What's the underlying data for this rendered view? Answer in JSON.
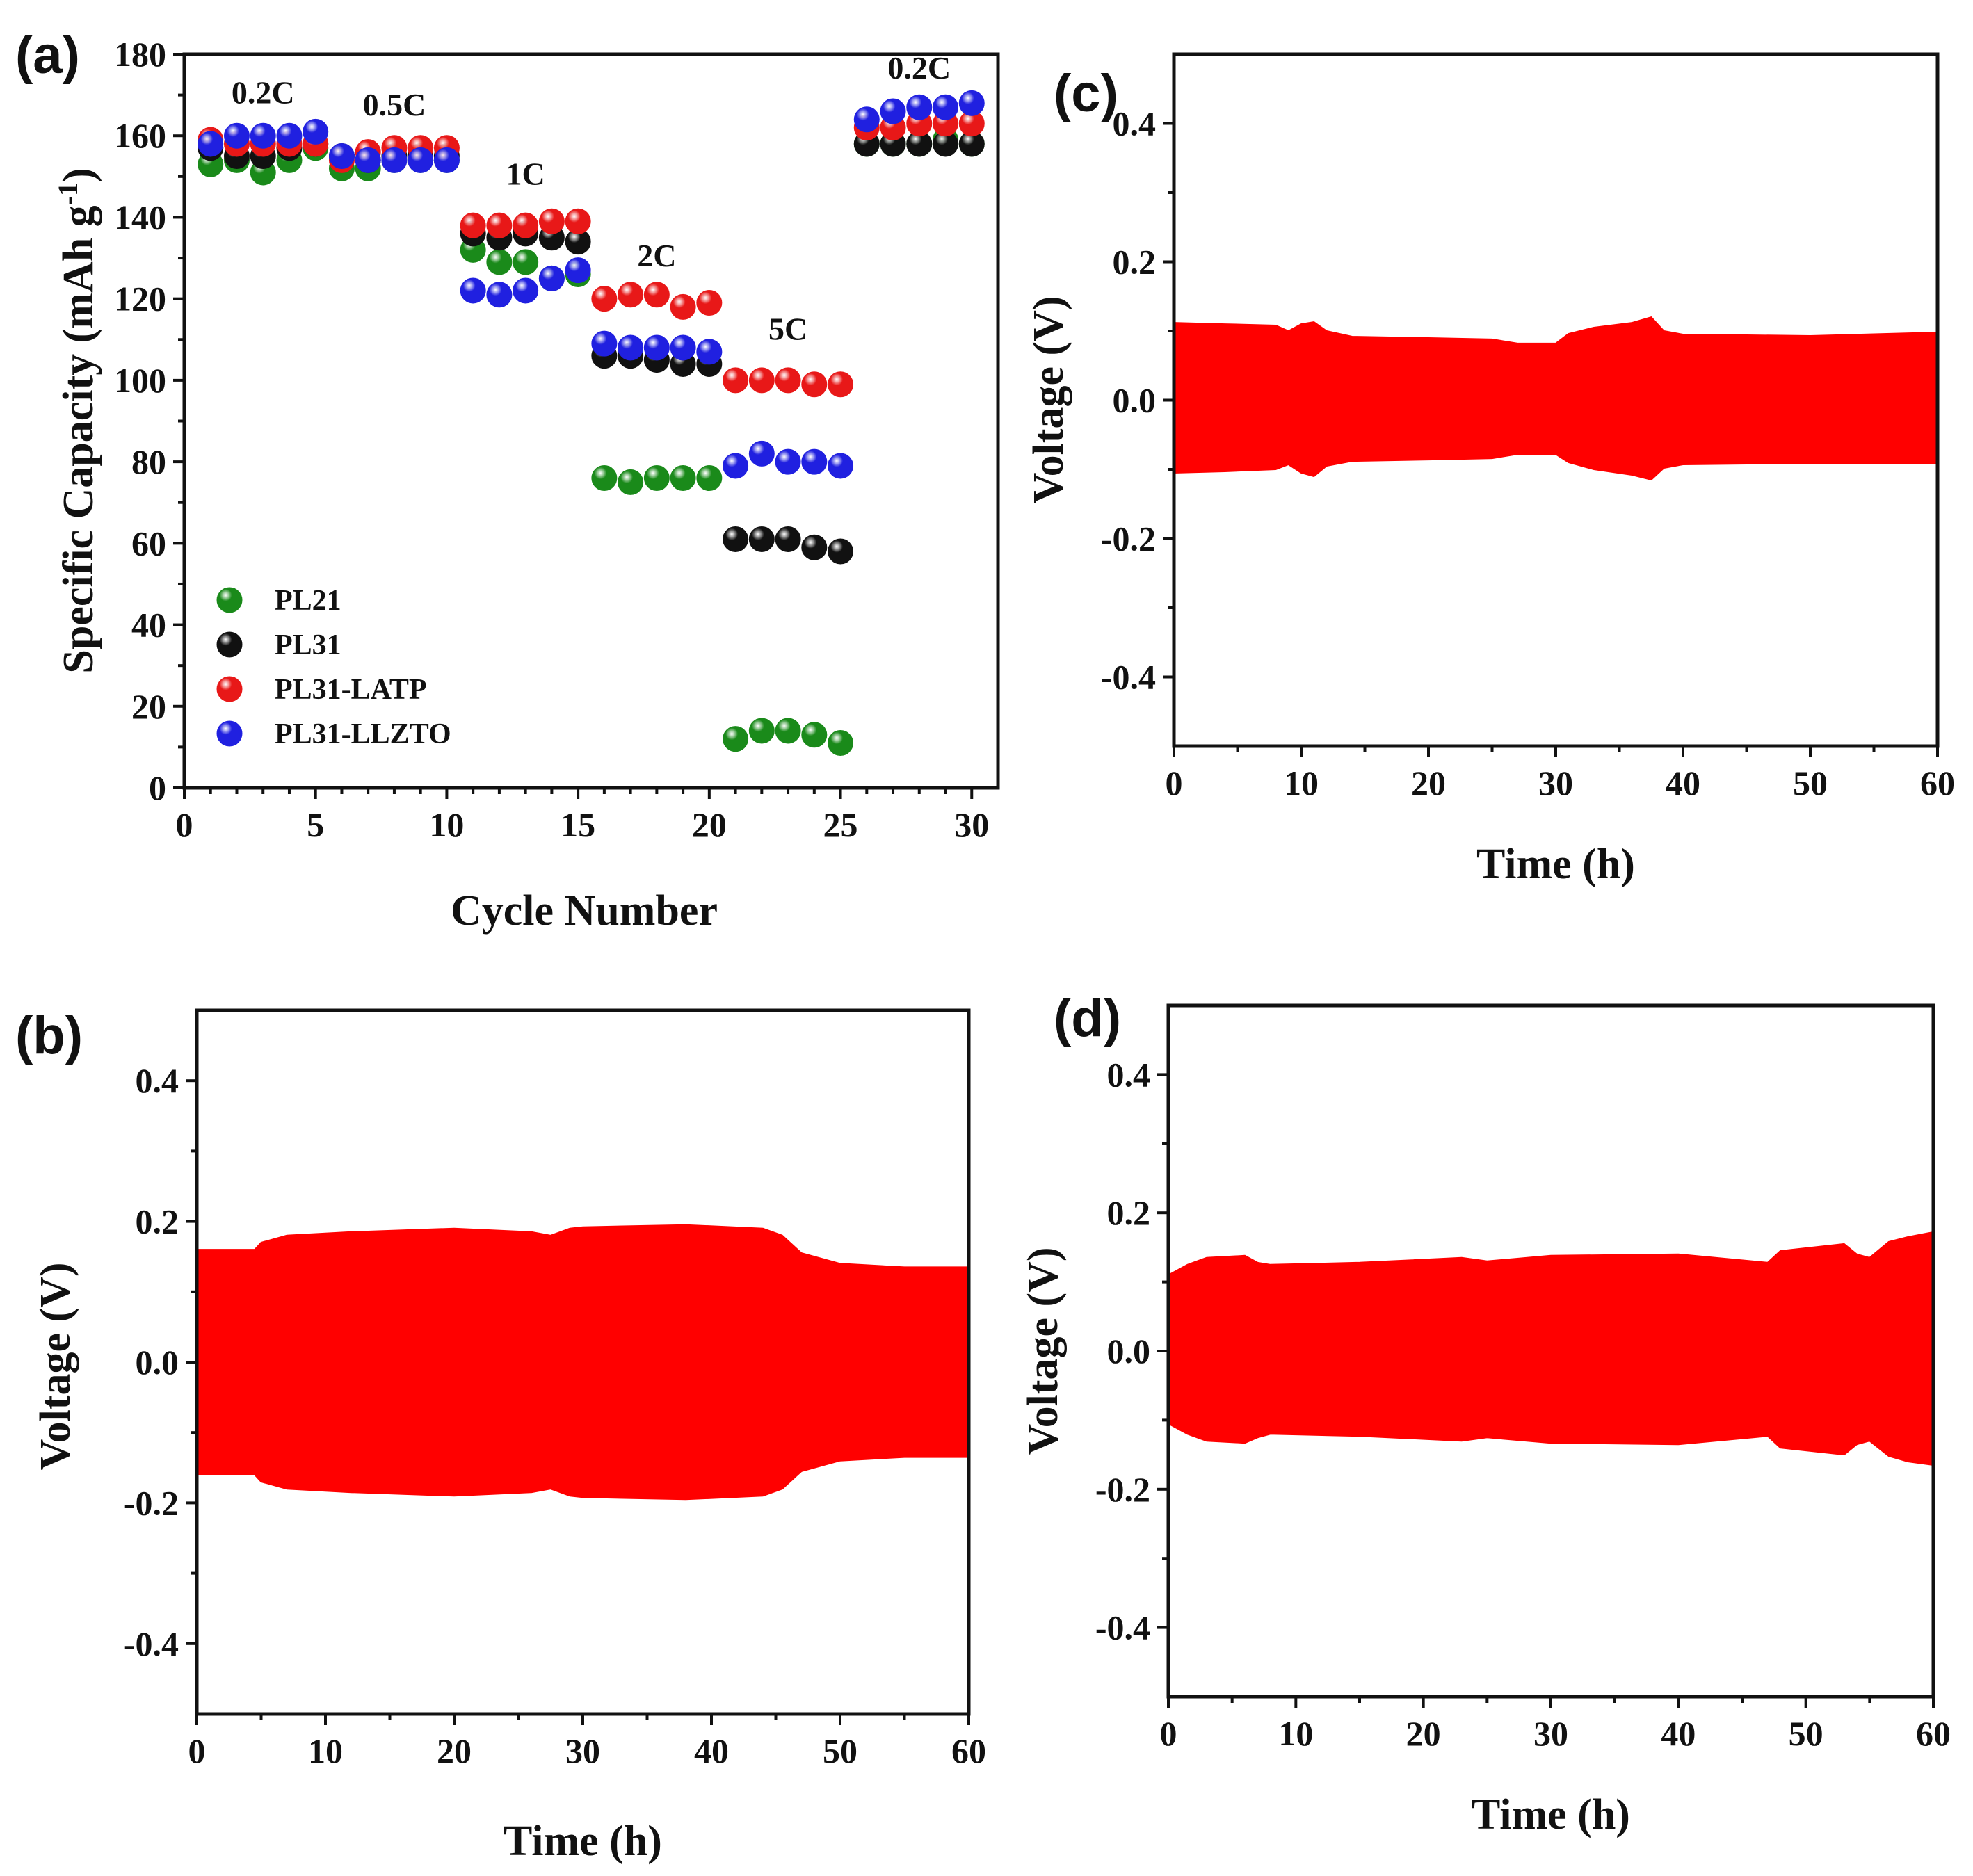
{
  "chart_data": [
    {
      "panel": "(a)",
      "type": "scatter",
      "xlabel": "Cycle Number",
      "ylabel": "Specific Capacity (mAh g",
      "ylabel_sup": "-1",
      "ylabel_close": ")",
      "xlim": [
        0,
        31
      ],
      "ylim": [
        0,
        180
      ],
      "xticks": [
        0,
        5,
        10,
        15,
        20,
        25,
        30
      ],
      "yticks": [
        0,
        20,
        40,
        60,
        80,
        100,
        120,
        140,
        160,
        180
      ],
      "legend_position": "bottom-left",
      "annotations": [
        {
          "text": "0.2C",
          "x": 3,
          "y": 168
        },
        {
          "text": "0.5C",
          "x": 8,
          "y": 165
        },
        {
          "text": "1C",
          "x": 13,
          "y": 148
        },
        {
          "text": "2C",
          "x": 18,
          "y": 128
        },
        {
          "text": "5C",
          "x": 23,
          "y": 110
        },
        {
          "text": "0.2C",
          "x": 28,
          "y": 174
        }
      ],
      "x": [
        1,
        2,
        3,
        4,
        5,
        6,
        7,
        8,
        9,
        10,
        11,
        12,
        13,
        14,
        15,
        16,
        17,
        18,
        19,
        20,
        21,
        22,
        23,
        24,
        25,
        26,
        27,
        28,
        29,
        30
      ],
      "series": [
        {
          "name": "PL21",
          "color": "#1a8a1a",
          "values": [
            153,
            154,
            151,
            154,
            157,
            152,
            152,
            154,
            154,
            154,
            132,
            129,
            129,
            125,
            126,
            76,
            75,
            76,
            76,
            76,
            12,
            14,
            14,
            13,
            11,
            158,
            158,
            158,
            159,
            158
          ]
        },
        {
          "name": "PL31",
          "color": "#111111",
          "values": [
            157,
            155,
            155,
            157,
            158,
            155,
            154,
            155,
            155,
            155,
            136,
            135,
            136,
            135,
            134,
            106,
            106,
            105,
            104,
            104,
            61,
            61,
            61,
            59,
            58,
            158,
            158,
            158,
            158,
            158
          ]
        },
        {
          "name": "PL31-LATP",
          "color": "#e81818",
          "values": [
            159,
            158,
            158,
            158,
            158,
            154,
            156,
            157,
            157,
            157,
            138,
            138,
            138,
            139,
            139,
            120,
            121,
            121,
            118,
            119,
            100,
            100,
            100,
            99,
            99,
            162,
            162,
            163,
            163,
            163
          ]
        },
        {
          "name": "PL31-LLZTO",
          "color": "#2020e0",
          "values": [
            158,
            160,
            160,
            160,
            161,
            155,
            154,
            154,
            154,
            154,
            122,
            121,
            122,
            125,
            127,
            109,
            108,
            108,
            108,
            107,
            79,
            82,
            80,
            80,
            79,
            164,
            166,
            167,
            167,
            168
          ]
        }
      ]
    },
    {
      "panel": "(b)",
      "type": "area",
      "xlabel": "Time (h)",
      "ylabel": "Voltage (V)",
      "xlim": [
        0,
        60
      ],
      "ylim": [
        -0.5,
        0.5
      ],
      "xticks": [
        0,
        10,
        20,
        30,
        40,
        50,
        "60"
      ],
      "yticks": [
        -0.4,
        -0.2,
        0.0,
        0.2,
        0.4
      ],
      "ytick_labels": [
        "-0.4",
        "-0.2",
        "0.0",
        "0.2",
        "0.4"
      ],
      "fill_color": "#ff0000",
      "x": [
        0,
        4.5,
        5,
        7,
        12,
        20,
        26,
        27.5,
        29,
        30,
        38,
        44,
        45.5,
        47,
        50,
        55,
        60
      ],
      "upper": [
        0.16,
        0.16,
        0.17,
        0.18,
        0.185,
        0.19,
        0.185,
        0.18,
        0.19,
        0.192,
        0.195,
        0.19,
        0.18,
        0.155,
        0.14,
        0.135,
        0.135
      ],
      "lower": [
        -0.16,
        -0.16,
        -0.17,
        -0.18,
        -0.185,
        -0.19,
        -0.185,
        -0.18,
        -0.19,
        -0.192,
        -0.195,
        -0.19,
        -0.18,
        -0.155,
        -0.14,
        -0.135,
        -0.135
      ]
    },
    {
      "panel": "(c)",
      "type": "area",
      "xlabel": "Time (h)",
      "ylabel": "Voltage (V)",
      "xlim": [
        0,
        60
      ],
      "ylim": [
        -0.5,
        0.5
      ],
      "xticks": [
        0,
        10,
        20,
        30,
        40,
        50,
        60
      ],
      "yticks": [
        -0.4,
        -0.2,
        0.0,
        0.2,
        0.4
      ],
      "ytick_labels": [
        "-0.4",
        "-0.2",
        "0.0",
        "0.2",
        "0.4"
      ],
      "fill_color": "#ff0000",
      "x": [
        0,
        4,
        8,
        9,
        10,
        11,
        12,
        14,
        20,
        25,
        27,
        30,
        31,
        33,
        36,
        37.5,
        38.5,
        40,
        45,
        50,
        60
      ],
      "upper": [
        0.112,
        0.11,
        0.108,
        0.1,
        0.11,
        0.113,
        0.1,
        0.092,
        0.09,
        0.088,
        0.082,
        0.082,
        0.096,
        0.105,
        0.112,
        0.12,
        0.1,
        0.095,
        0.094,
        0.093,
        0.098
      ],
      "lower": [
        -0.105,
        -0.103,
        -0.1,
        -0.093,
        -0.105,
        -0.11,
        -0.095,
        -0.088,
        -0.086,
        -0.084,
        -0.078,
        -0.078,
        -0.09,
        -0.1,
        -0.108,
        -0.115,
        -0.098,
        -0.093,
        -0.092,
        -0.091,
        -0.092
      ]
    },
    {
      "panel": "(d)",
      "type": "area",
      "xlabel": "Time (h)",
      "ylabel": "Voltage (V)",
      "xlim": [
        0,
        60
      ],
      "ylim": [
        -0.5,
        0.5
      ],
      "xticks": [
        0,
        10,
        20,
        30,
        40,
        50,
        60
      ],
      "yticks": [
        -0.4,
        -0.2,
        0.0,
        0.2,
        0.4
      ],
      "ytick_labels": [
        "-0.4",
        "-0.2",
        "0.0",
        "0.2",
        "0.4"
      ],
      "fill_color": "#ff0000",
      "x": [
        0,
        1.5,
        3,
        6,
        7,
        8,
        15,
        23,
        25,
        30,
        40,
        47,
        48,
        53,
        54,
        55,
        56.5,
        58,
        60
      ],
      "upper": [
        0.11,
        0.125,
        0.135,
        0.138,
        0.128,
        0.125,
        0.128,
        0.135,
        0.13,
        0.138,
        0.14,
        0.128,
        0.145,
        0.155,
        0.14,
        0.135,
        0.158,
        0.165,
        0.172
      ],
      "lower": [
        -0.105,
        -0.12,
        -0.13,
        -0.133,
        -0.125,
        -0.12,
        -0.123,
        -0.13,
        -0.125,
        -0.133,
        -0.135,
        -0.123,
        -0.14,
        -0.15,
        -0.135,
        -0.13,
        -0.152,
        -0.16,
        -0.165
      ]
    }
  ]
}
